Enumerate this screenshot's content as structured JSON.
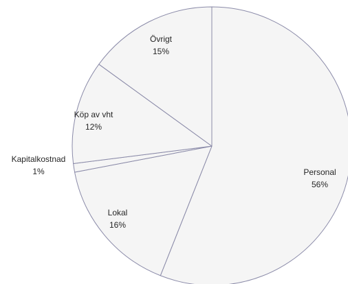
{
  "chart_data": {
    "type": "pie",
    "title": "",
    "slices": [
      {
        "label": "Personal",
        "value": 56,
        "value_label": "56%"
      },
      {
        "label": "Lokal",
        "value": 16,
        "value_label": "16%"
      },
      {
        "label": "Kapitalkostnad",
        "value": 1,
        "value_label": "1%"
      },
      {
        "label": "Köp av vht",
        "value": 12,
        "value_label": "12%"
      },
      {
        "label": "Övrigt",
        "value": 15,
        "value_label": "15%"
      }
    ],
    "legend": "none",
    "colors": {
      "slice_fill": "#f5f5f5",
      "slice_stroke": "#8a8aa8",
      "text": "#262626"
    }
  }
}
